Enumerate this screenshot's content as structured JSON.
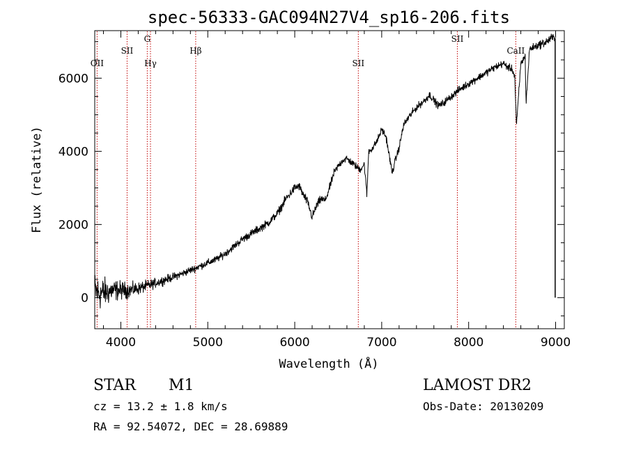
{
  "chart_data": {
    "type": "line",
    "title": "spec-56333-GAC094N27V4_sp16-206.fits",
    "xlabel": "Wavelength (Å)",
    "ylabel": "Flux (relative)",
    "xlim": [
      3700,
      9100
    ],
    "ylim": [
      -850,
      7300
    ],
    "x_ticks": [
      4000,
      5000,
      6000,
      7000,
      8000,
      9000
    ],
    "y_ticks": [
      0,
      2000,
      4000,
      6000
    ],
    "x_tick_labels": [
      "4000",
      "5000",
      "6000",
      "7000",
      "8000",
      "9000"
    ],
    "y_tick_labels": [
      "0",
      "2000",
      "4000",
      "6000"
    ],
    "spectrum": {
      "name": "flux",
      "x": [
        3700,
        3750,
        3800,
        3850,
        3900,
        4000,
        4100,
        4200,
        4300,
        4400,
        4500,
        4600,
        4700,
        4800,
        4900,
        5000,
        5100,
        5200,
        5300,
        5400,
        5500,
        5600,
        5700,
        5800,
        5900,
        6000,
        6050,
        6100,
        6150,
        6200,
        6250,
        6300,
        6350,
        6400,
        6450,
        6500,
        6550,
        6600,
        6650,
        6700,
        6750,
        6800,
        6830,
        6850,
        6900,
        6950,
        7000,
        7050,
        7100,
        7120,
        7150,
        7200,
        7250,
        7300,
        7400,
        7500,
        7550,
        7600,
        7650,
        7700,
        7800,
        7900,
        8000,
        8100,
        8200,
        8300,
        8400,
        8450,
        8500,
        8530,
        8550,
        8600,
        8650,
        8660,
        8700,
        8800,
        8900,
        8950,
        8990
      ],
      "y": [
        200,
        100,
        150,
        150,
        200,
        200,
        200,
        250,
        320,
        400,
        480,
        560,
        650,
        750,
        850,
        950,
        1050,
        1200,
        1400,
        1600,
        1750,
        1900,
        2050,
        2300,
        2700,
        3000,
        3050,
        2800,
        2600,
        2200,
        2500,
        2700,
        2650,
        3000,
        3400,
        3600,
        3750,
        3800,
        3700,
        3600,
        3500,
        3650,
        2800,
        4000,
        4100,
        4300,
        4600,
        4400,
        3700,
        3400,
        3700,
        4100,
        4700,
        4900,
        5200,
        5400,
        5550,
        5400,
        5250,
        5300,
        5500,
        5700,
        5850,
        6000,
        6150,
        6300,
        6400,
        6300,
        6250,
        6050,
        4700,
        6400,
        6600,
        5300,
        6800,
        6900,
        7000,
        7100,
        7100
      ],
      "noise_amplitude": [
        500,
        450,
        400,
        350,
        300,
        250,
        200,
        170,
        150,
        130,
        120,
        110,
        100,
        100,
        100,
        100,
        100,
        100,
        100,
        110,
        110,
        110,
        110,
        110,
        120,
        120,
        120,
        120,
        120,
        120,
        120,
        110,
        110,
        110,
        110,
        100,
        100,
        100,
        100,
        100,
        100,
        100,
        100,
        100,
        100,
        100,
        100,
        100,
        100,
        100,
        100,
        100,
        100,
        100,
        100,
        100,
        100,
        100,
        100,
        100,
        100,
        100,
        100,
        100,
        100,
        100,
        100,
        100,
        100,
        100,
        100,
        100,
        100,
        100,
        100,
        110,
        120,
        120,
        120
      ],
      "end_drop": {
        "x": 8995,
        "y_from": 7100,
        "y_to": 0
      }
    },
    "line_markers": [
      {
        "label": "OII",
        "x": 3727,
        "tier": 2
      },
      {
        "label": "SII",
        "x": 4072,
        "tier": 1
      },
      {
        "label": "G",
        "x": 4304,
        "tier": 0
      },
      {
        "label": "Hγ",
        "x": 4341,
        "tier": 2
      },
      {
        "label": "Hβ",
        "x": 4861,
        "tier": 1
      },
      {
        "label": "SII",
        "x": 6731,
        "tier": 2
      },
      {
        "label": "SII",
        "x": 7870,
        "tier": 0
      },
      {
        "label": "CaII",
        "x": 8542,
        "tier": 1
      }
    ]
  },
  "info": {
    "class": "STAR",
    "subclass": "M1",
    "survey": "LAMOST DR2",
    "cz": "cz = 13.2 ± 1.8 km/s",
    "obs_date": "Obs-Date: 20130209",
    "radec": "RA =  92.54072, DEC =  28.69889"
  },
  "colors": {
    "marker": "#c00000",
    "trace": "#000000",
    "axes": "#000000"
  }
}
